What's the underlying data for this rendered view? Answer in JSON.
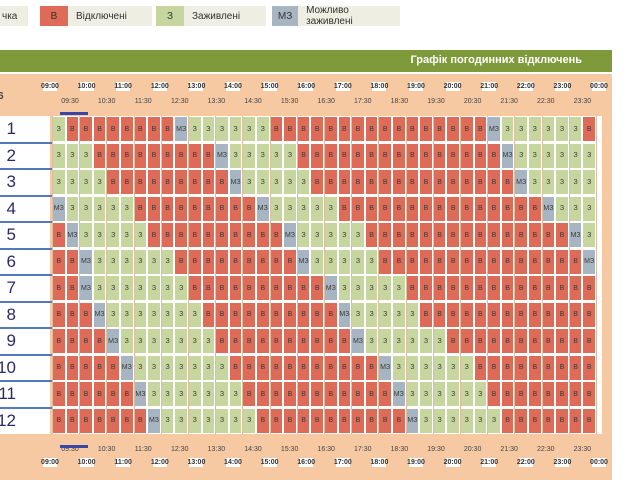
{
  "legend": [
    {
      "code": "",
      "label": "чка",
      "color": ""
    },
    {
      "code": "В",
      "label": "Відключені",
      "color": "#de6a58"
    },
    {
      "code": "З",
      "label": "Заживлені",
      "color": "#c7d69e"
    },
    {
      "code": "МЗ",
      "label": "Можливо заживлені",
      "color": "#a7b5c2"
    }
  ],
  "schedule": {
    "title": "Графік погодинних відключень",
    "queue_header": "6",
    "hours": [
      "09:00",
      "10:00",
      "11:00",
      "12:00",
      "13:00",
      "14:00",
      "15:00",
      "16:00",
      "17:00",
      "18:00",
      "19:00",
      "20:00",
      "21:00",
      "22:00",
      "23:00",
      "00:00"
    ],
    "halfhours": [
      "09:30",
      "10:30",
      "11:30",
      "12:30",
      "13:30",
      "14:30",
      "15:30",
      "16:30",
      "17:30",
      "18:30",
      "19:30",
      "20:30",
      "21:30",
      "22:30",
      "23:30"
    ],
    "queues": [
      "1",
      "2",
      "3",
      "4",
      "5",
      "6",
      "7",
      "8",
      "9",
      "10",
      "11",
      "12"
    ],
    "rows": [
      [
        "З",
        "В",
        "В",
        "В",
        "В",
        "В",
        "В",
        "В",
        "В",
        "МЗ",
        "З",
        "З",
        "З",
        "З",
        "З",
        "З",
        "В",
        "В",
        "В",
        "В",
        "В",
        "В",
        "В",
        "В",
        "В",
        "В",
        "В",
        "В",
        "В",
        "В",
        "В",
        "В",
        "МЗ",
        "З",
        "З",
        "З",
        "З",
        "З",
        "З",
        "В"
      ],
      [
        "З",
        "З",
        "З",
        "В",
        "В",
        "В",
        "В",
        "В",
        "В",
        "В",
        "В",
        "В",
        "МЗ",
        "З",
        "З",
        "З",
        "З",
        "З",
        "В",
        "В",
        "В",
        "В",
        "В",
        "В",
        "В",
        "В",
        "В",
        "В",
        "В",
        "В",
        "В",
        "В",
        "В",
        "МЗ",
        "З",
        "З",
        "З",
        "З",
        "З",
        "З"
      ],
      [
        "З",
        "З",
        "З",
        "З",
        "В",
        "В",
        "В",
        "В",
        "В",
        "В",
        "В",
        "В",
        "В",
        "МЗ",
        "З",
        "З",
        "З",
        "З",
        "З",
        "В",
        "В",
        "В",
        "В",
        "В",
        "В",
        "В",
        "В",
        "В",
        "В",
        "В",
        "В",
        "В",
        "В",
        "В",
        "МЗ",
        "З",
        "З",
        "З",
        "З",
        "З"
      ],
      [
        "МЗ",
        "З",
        "З",
        "З",
        "З",
        "З",
        "В",
        "В",
        "В",
        "В",
        "В",
        "В",
        "В",
        "В",
        "В",
        "МЗ",
        "З",
        "З",
        "З",
        "З",
        "З",
        "В",
        "В",
        "В",
        "В",
        "В",
        "В",
        "В",
        "В",
        "В",
        "В",
        "В",
        "В",
        "В",
        "В",
        "В",
        "МЗ",
        "З",
        "З",
        "З"
      ],
      [
        "В",
        "МЗ",
        "З",
        "З",
        "З",
        "З",
        "З",
        "В",
        "В",
        "В",
        "В",
        "В",
        "В",
        "В",
        "В",
        "В",
        "В",
        "МЗ",
        "З",
        "З",
        "З",
        "З",
        "З",
        "В",
        "В",
        "В",
        "В",
        "В",
        "В",
        "В",
        "В",
        "В",
        "В",
        "В",
        "В",
        "В",
        "В",
        "В",
        "МЗ",
        "З"
      ],
      [
        "В",
        "В",
        "МЗ",
        "З",
        "З",
        "З",
        "З",
        "З",
        "З",
        "В",
        "В",
        "В",
        "В",
        "В",
        "В",
        "В",
        "В",
        "В",
        "МЗ",
        "З",
        "З",
        "З",
        "З",
        "З",
        "В",
        "В",
        "В",
        "В",
        "В",
        "В",
        "В",
        "В",
        "В",
        "В",
        "В",
        "В",
        "В",
        "В",
        "В",
        "МЗ"
      ],
      [
        "В",
        "В",
        "МЗ",
        "З",
        "З",
        "З",
        "З",
        "З",
        "З",
        "З",
        "В",
        "В",
        "В",
        "В",
        "В",
        "В",
        "В",
        "В",
        "В",
        "В",
        "МЗ",
        "З",
        "З",
        "З",
        "З",
        "З",
        "В",
        "В",
        "В",
        "В",
        "В",
        "В",
        "В",
        "В",
        "В",
        "В",
        "В",
        "В",
        "В",
        "В"
      ],
      [
        "В",
        "В",
        "В",
        "МЗ",
        "З",
        "З",
        "З",
        "З",
        "З",
        "З",
        "З",
        "В",
        "В",
        "В",
        "В",
        "В",
        "В",
        "В",
        "В",
        "В",
        "В",
        "МЗ",
        "З",
        "З",
        "З",
        "З",
        "З",
        "В",
        "В",
        "В",
        "В",
        "В",
        "В",
        "В",
        "В",
        "В",
        "В",
        "В",
        "В",
        "В"
      ],
      [
        "В",
        "В",
        "В",
        "В",
        "МЗ",
        "З",
        "З",
        "З",
        "З",
        "З",
        "З",
        "З",
        "В",
        "В",
        "В",
        "В",
        "В",
        "В",
        "В",
        "В",
        "В",
        "В",
        "МЗ",
        "З",
        "З",
        "З",
        "З",
        "З",
        "З",
        "В",
        "В",
        "В",
        "В",
        "В",
        "В",
        "В",
        "В",
        "В",
        "В",
        "В"
      ],
      [
        "В",
        "В",
        "В",
        "В",
        "В",
        "МЗ",
        "З",
        "З",
        "З",
        "З",
        "З",
        "З",
        "З",
        "В",
        "В",
        "В",
        "В",
        "В",
        "В",
        "В",
        "В",
        "В",
        "В",
        "В",
        "МЗ",
        "З",
        "З",
        "З",
        "З",
        "З",
        "З",
        "В",
        "В",
        "В",
        "В",
        "В",
        "В",
        "В",
        "В",
        "В"
      ],
      [
        "В",
        "В",
        "В",
        "В",
        "В",
        "В",
        "МЗ",
        "З",
        "З",
        "З",
        "З",
        "З",
        "З",
        "З",
        "В",
        "В",
        "В",
        "В",
        "В",
        "В",
        "В",
        "В",
        "В",
        "В",
        "В",
        "МЗ",
        "З",
        "З",
        "З",
        "З",
        "З",
        "З",
        "В",
        "В",
        "В",
        "В",
        "В",
        "В",
        "В",
        "В"
      ],
      [
        "В",
        "В",
        "В",
        "В",
        "В",
        "В",
        "В",
        "МЗ",
        "З",
        "З",
        "З",
        "З",
        "З",
        "З",
        "З",
        "В",
        "В",
        "В",
        "В",
        "В",
        "В",
        "В",
        "В",
        "В",
        "В",
        "В",
        "МЗ",
        "З",
        "З",
        "З",
        "З",
        "З",
        "З",
        "В",
        "В",
        "В",
        "В",
        "В",
        "В",
        "В"
      ]
    ]
  }
}
